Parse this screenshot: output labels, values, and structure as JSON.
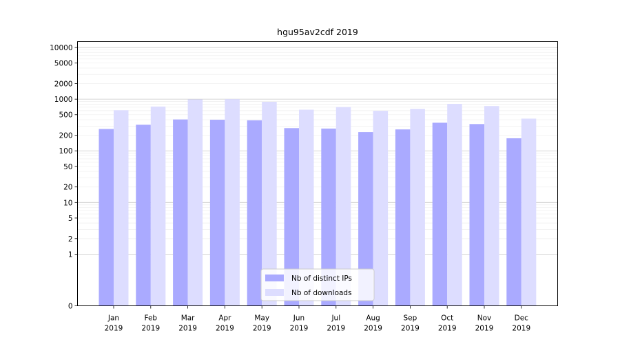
{
  "chart_data": {
    "type": "bar",
    "title": "hgu95av2cdf 2019",
    "xlabel": "",
    "ylabel": "",
    "yscale": "symlog",
    "ylim": [
      0,
      13000
    ],
    "y_ticks": [
      0,
      1,
      2,
      5,
      10,
      20,
      50,
      100,
      200,
      500,
      1000,
      2000,
      5000,
      10000
    ],
    "categories": [
      "Jan\n2019",
      "Feb\n2019",
      "Mar\n2019",
      "Apr\n2019",
      "May\n2019",
      "Jun\n2019",
      "Jul\n2019",
      "Aug\n2019",
      "Sep\n2019",
      "Oct\n2019",
      "Nov\n2019",
      "Dec\n2019"
    ],
    "series": [
      {
        "name": "Nb of distinct IPs",
        "color": "#aaaaff",
        "values": [
          265,
          320,
          405,
          400,
          390,
          275,
          270,
          230,
          260,
          350,
          330,
          175
        ]
      },
      {
        "name": "Nb of downloads",
        "color": "#ddddff",
        "values": [
          610,
          720,
          990,
          1000,
          890,
          625,
          705,
          595,
          650,
          810,
          735,
          420
        ]
      }
    ],
    "legend_position": "bottom-center",
    "grid": true
  }
}
